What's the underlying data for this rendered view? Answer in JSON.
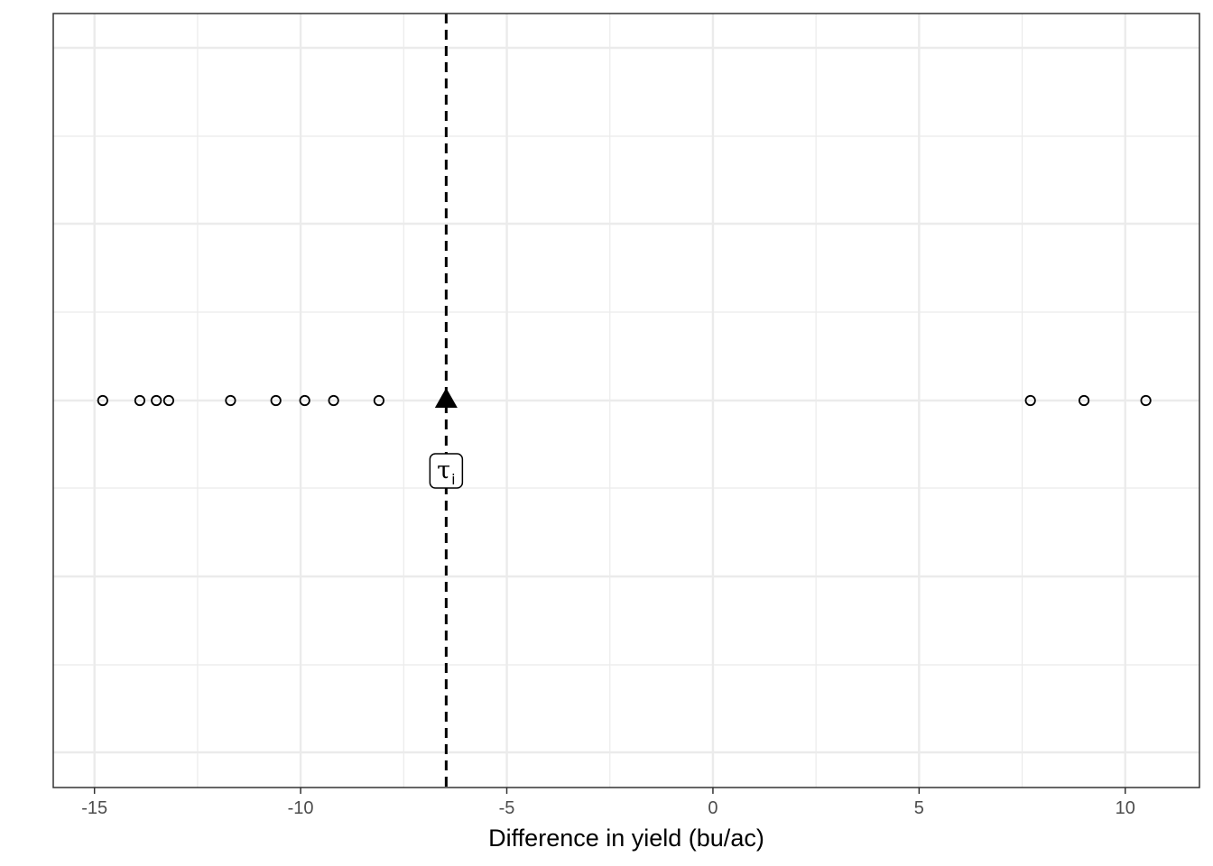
{
  "chart_data": {
    "type": "scatter",
    "title": "",
    "xlabel": "Difference in yield (bu/ac)",
    "ylabel": "",
    "xlim": [
      -16,
      11.8
    ],
    "x_ticks": [
      -15,
      -10,
      -5,
      0,
      5,
      10
    ],
    "x_tick_labels": [
      "-15",
      "-10",
      "-5",
      "0",
      "5",
      "10"
    ],
    "grid": true,
    "points": [
      {
        "x": -14.8,
        "y": 0
      },
      {
        "x": -13.9,
        "y": 0
      },
      {
        "x": -13.5,
        "y": 0
      },
      {
        "x": -13.2,
        "y": 0
      },
      {
        "x": -11.7,
        "y": 0
      },
      {
        "x": -10.6,
        "y": 0
      },
      {
        "x": -9.9,
        "y": 0
      },
      {
        "x": -9.2,
        "y": 0
      },
      {
        "x": -8.1,
        "y": 0
      },
      {
        "x": 7.7,
        "y": 0
      },
      {
        "x": 9.0,
        "y": 0
      },
      {
        "x": 10.5,
        "y": 0
      }
    ],
    "mean_marker": {
      "x": -6.47,
      "y": 0,
      "shape": "triangle"
    },
    "reference_line": {
      "x": -6.47,
      "style": "dashed"
    },
    "annotation": {
      "text": "τ",
      "subscript": "i"
    }
  },
  "colors": {
    "point_stroke": "#000000",
    "grid_major": "#ebebeb",
    "panel_border": "#333333",
    "tick_text": "#4d4d4d"
  }
}
